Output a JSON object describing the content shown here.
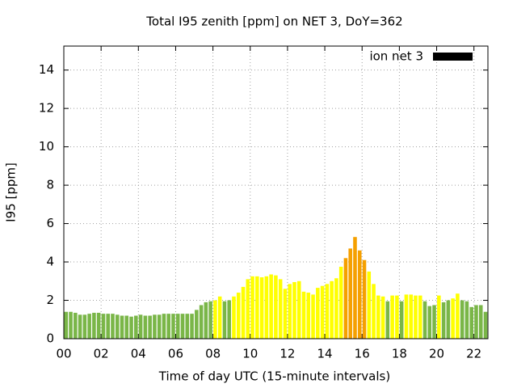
{
  "chart_data": {
    "type": "bar",
    "title": "Total I95 zenith [ppm] on NET 3, DoY=362",
    "x_label": "Time of day UTC (15-minute intervals)",
    "y_label": "I95 [ppm]",
    "x": [
      0,
      0.25,
      0.5,
      0.75,
      1,
      1.25,
      1.5,
      1.75,
      2,
      2.25,
      2.5,
      2.75,
      3,
      3.25,
      3.5,
      3.75,
      4,
      4.25,
      4.5,
      4.75,
      5,
      5.25,
      5.5,
      5.75,
      6,
      6.25,
      6.5,
      6.75,
      7,
      7.25,
      7.5,
      7.75,
      8,
      8.25,
      8.5,
      8.75,
      9,
      9.25,
      9.5,
      9.75,
      10,
      10.25,
      10.5,
      10.75,
      11,
      11.25,
      11.5,
      11.75,
      12,
      12.25,
      12.5,
      12.75,
      13,
      13.25,
      13.5,
      13.75,
      14,
      14.25,
      14.5,
      14.75,
      15,
      15.25,
      15.5,
      15.75,
      16,
      16.25,
      16.5,
      16.75,
      17,
      17.25,
      17.5,
      17.75,
      18,
      18.25,
      18.5,
      18.75,
      19,
      19.25,
      19.5,
      19.75,
      20,
      20.25,
      20.5,
      20.75,
      21,
      21.25,
      21.5,
      21.75,
      22,
      22.25,
      22.5
    ],
    "series": [
      {
        "name": "ion net 3",
        "color": "#000000",
        "values": [
          1.4,
          1.4,
          1.35,
          1.25,
          1.25,
          1.3,
          1.35,
          1.35,
          1.3,
          1.3,
          1.3,
          1.25,
          1.2,
          1.2,
          1.15,
          1.2,
          1.25,
          1.2,
          1.2,
          1.25,
          1.25,
          1.3,
          1.3,
          1.3,
          1.3,
          1.3,
          1.3,
          1.3,
          1.5,
          1.75,
          1.9,
          1.95,
          2.0,
          2.2,
          1.95,
          2.0,
          2.2,
          2.4,
          2.7,
          3.1,
          3.25,
          3.25,
          3.2,
          3.25,
          3.35,
          3.3,
          3.1,
          2.6,
          2.85,
          2.95,
          3.0,
          2.45,
          2.4,
          2.3,
          2.65,
          2.75,
          2.85,
          3.0,
          3.15,
          3.75,
          4.2,
          4.7,
          5.3,
          4.6,
          4.1,
          3.5,
          2.85,
          2.25,
          2.2,
          1.95,
          2.25,
          2.25,
          1.95,
          2.3,
          2.3,
          2.25,
          2.25,
          1.95,
          1.7,
          1.75,
          2.25,
          1.9,
          2.0,
          2.1,
          2.35,
          2.0,
          1.95,
          1.65,
          1.75,
          1.75,
          1.4
        ],
        "colors": [
          "#7ab648",
          "#7ab648",
          "#7ab648",
          "#7ab648",
          "#7ab648",
          "#7ab648",
          "#7ab648",
          "#7ab648",
          "#7ab648",
          "#7ab648",
          "#7ab648",
          "#7ab648",
          "#7ab648",
          "#7ab648",
          "#7ab648",
          "#7ab648",
          "#7ab648",
          "#7ab648",
          "#7ab648",
          "#7ab648",
          "#7ab648",
          "#7ab648",
          "#7ab648",
          "#7ab648",
          "#7ab648",
          "#7ab648",
          "#7ab648",
          "#7ab648",
          "#7ab648",
          "#7ab648",
          "#7ab648",
          "#7ab648",
          "#ffff00",
          "#ffff00",
          "#7ab648",
          "#7ab648",
          "#ffff00",
          "#ffff00",
          "#ffff00",
          "#ffff00",
          "#ffff00",
          "#ffff00",
          "#ffff00",
          "#ffff00",
          "#ffff00",
          "#ffff00",
          "#ffff00",
          "#ffff00",
          "#ffff00",
          "#ffff00",
          "#ffff00",
          "#ffff00",
          "#ffff00",
          "#ffff00",
          "#ffff00",
          "#ffff00",
          "#ffff00",
          "#ffff00",
          "#ffff00",
          "#ffff00",
          "#f5a000",
          "#f5a000",
          "#f5a000",
          "#f5a000",
          "#f5a000",
          "#ffff00",
          "#ffff00",
          "#ffff00",
          "#ffff00",
          "#7ab648",
          "#ffff00",
          "#ffff00",
          "#7ab648",
          "#ffff00",
          "#ffff00",
          "#ffff00",
          "#ffff00",
          "#7ab648",
          "#7ab648",
          "#7ab648",
          "#ffff00",
          "#7ab648",
          "#7ab648",
          "#ffff00",
          "#ffff00",
          "#7ab648",
          "#7ab648",
          "#7ab648",
          "#7ab648",
          "#7ab648",
          "#7ab648"
        ]
      }
    ],
    "xlim": [
      0,
      22.75
    ],
    "xticks": [
      {
        "value": 0,
        "label": "00"
      },
      {
        "value": 2,
        "label": "02"
      },
      {
        "value": 4,
        "label": "04"
      },
      {
        "value": 6,
        "label": "06"
      },
      {
        "value": 8,
        "label": "08"
      },
      10,
      12,
      14,
      16,
      18,
      20,
      22
    ],
    "ylim": [
      0,
      15.25
    ],
    "yticks": [
      0,
      2,
      4,
      6,
      8,
      10,
      12,
      14
    ],
    "grid": true,
    "legend": "top-right"
  }
}
